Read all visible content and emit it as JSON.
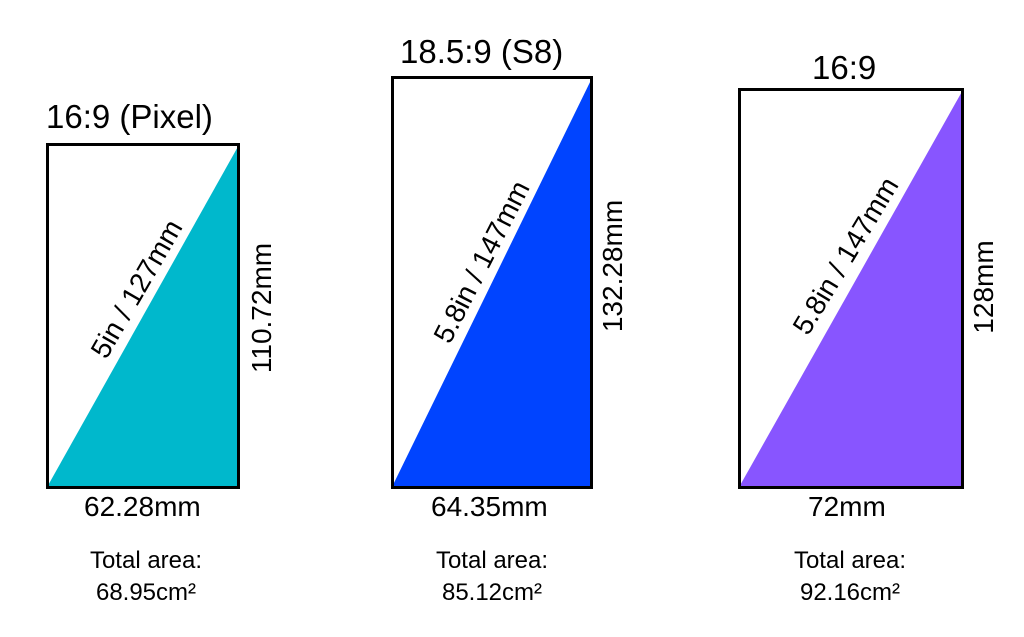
{
  "phones": [
    {
      "title": "16:9 (Pixel)",
      "diagonal": "5in / 127mm",
      "height": "110.72mm",
      "width": "62.28mm",
      "area_label": "Total area:",
      "area_value": "68.95cm²",
      "fill": "#00b8cc"
    },
    {
      "title": "18.5:9 (S8)",
      "diagonal": "5.8in / 147mm",
      "height": "132.28mm",
      "width": "64.35mm",
      "area_label": "Total area:",
      "area_value": "85.12cm²",
      "fill": "#0044ff"
    },
    {
      "title": "16:9",
      "diagonal": "5.8in / 147mm",
      "height": "128mm",
      "width": "72mm",
      "area_label": "Total area:",
      "area_value": "92.16cm²",
      "fill": "#8855ff"
    }
  ]
}
